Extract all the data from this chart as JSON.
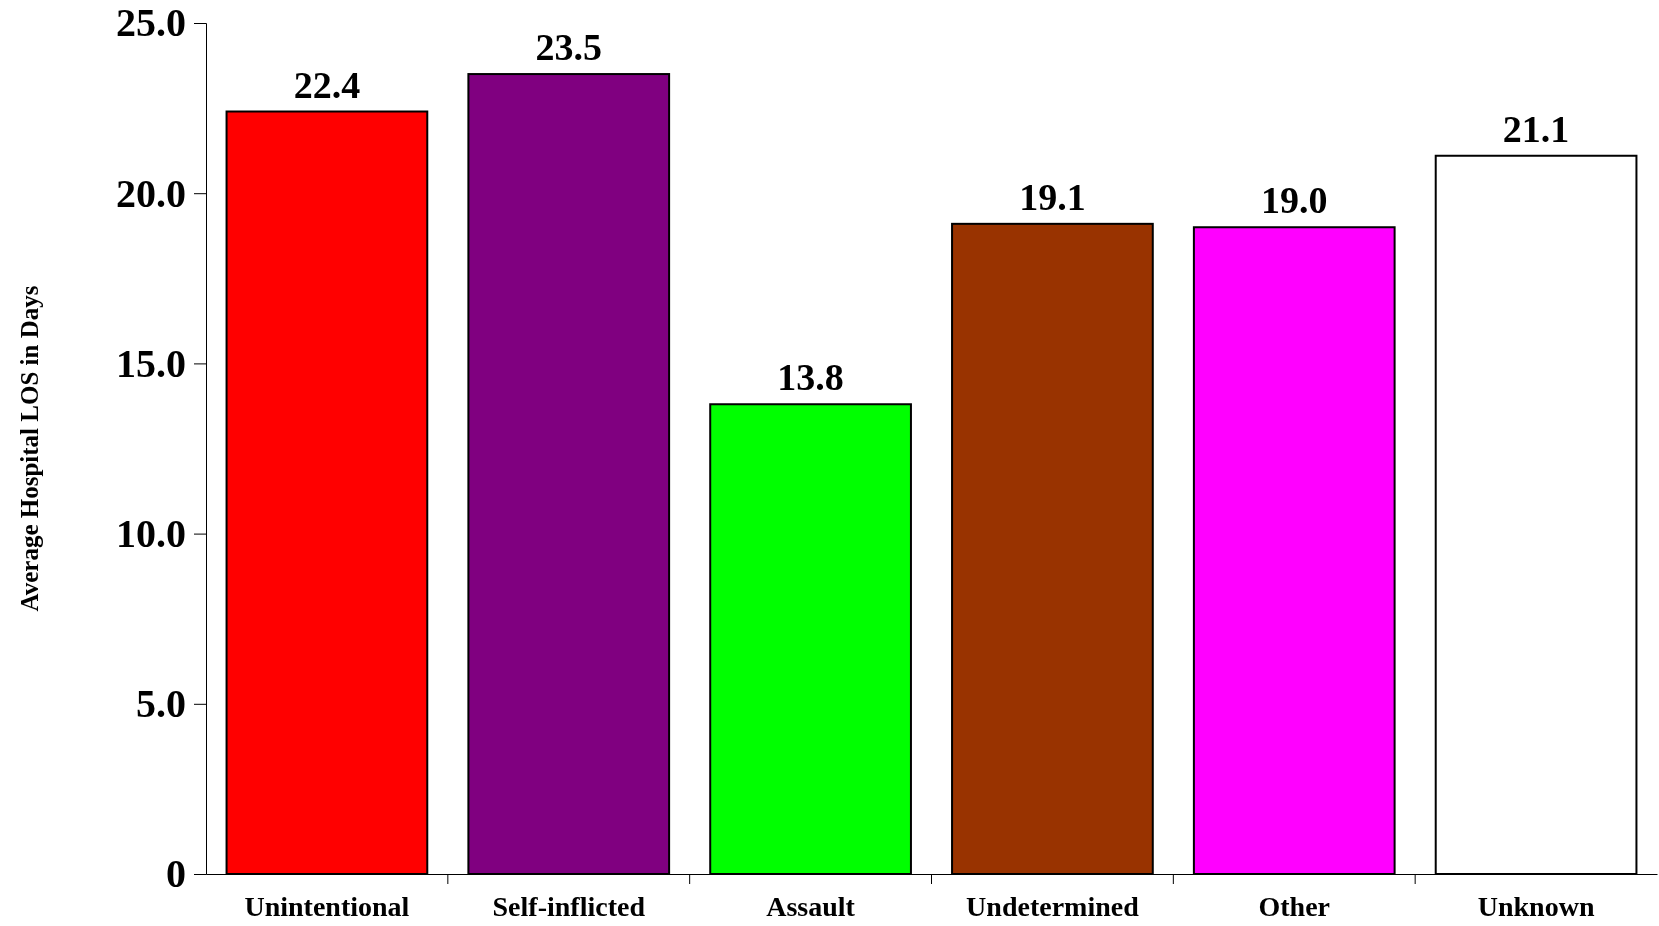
{
  "chart_data": {
    "type": "bar",
    "ylabel": "Average Hospital LOS in Days",
    "categories": [
      "Unintentional",
      "Self-inflicted",
      "Assault",
      "Undetermined",
      "Other",
      "Unknown"
    ],
    "values": [
      22.4,
      23.5,
      13.8,
      19.1,
      19.0,
      21.1
    ],
    "value_labels": [
      "22.4",
      "23.5",
      "13.8",
      "19.1",
      "19.0",
      "21.1"
    ],
    "colors": [
      "#ff0000",
      "#800080",
      "#00ff00",
      "#993300",
      "#ff00ff",
      "#ffffff"
    ],
    "ylim": [
      0,
      25
    ],
    "yticks": [
      {
        "value": 0,
        "label": "0"
      },
      {
        "value": 5,
        "label": "5.0"
      },
      {
        "value": 10,
        "label": "10.0"
      },
      {
        "value": 15,
        "label": "15.0"
      },
      {
        "value": 20,
        "label": "20.0"
      },
      {
        "value": 25,
        "label": "25.0"
      }
    ]
  }
}
